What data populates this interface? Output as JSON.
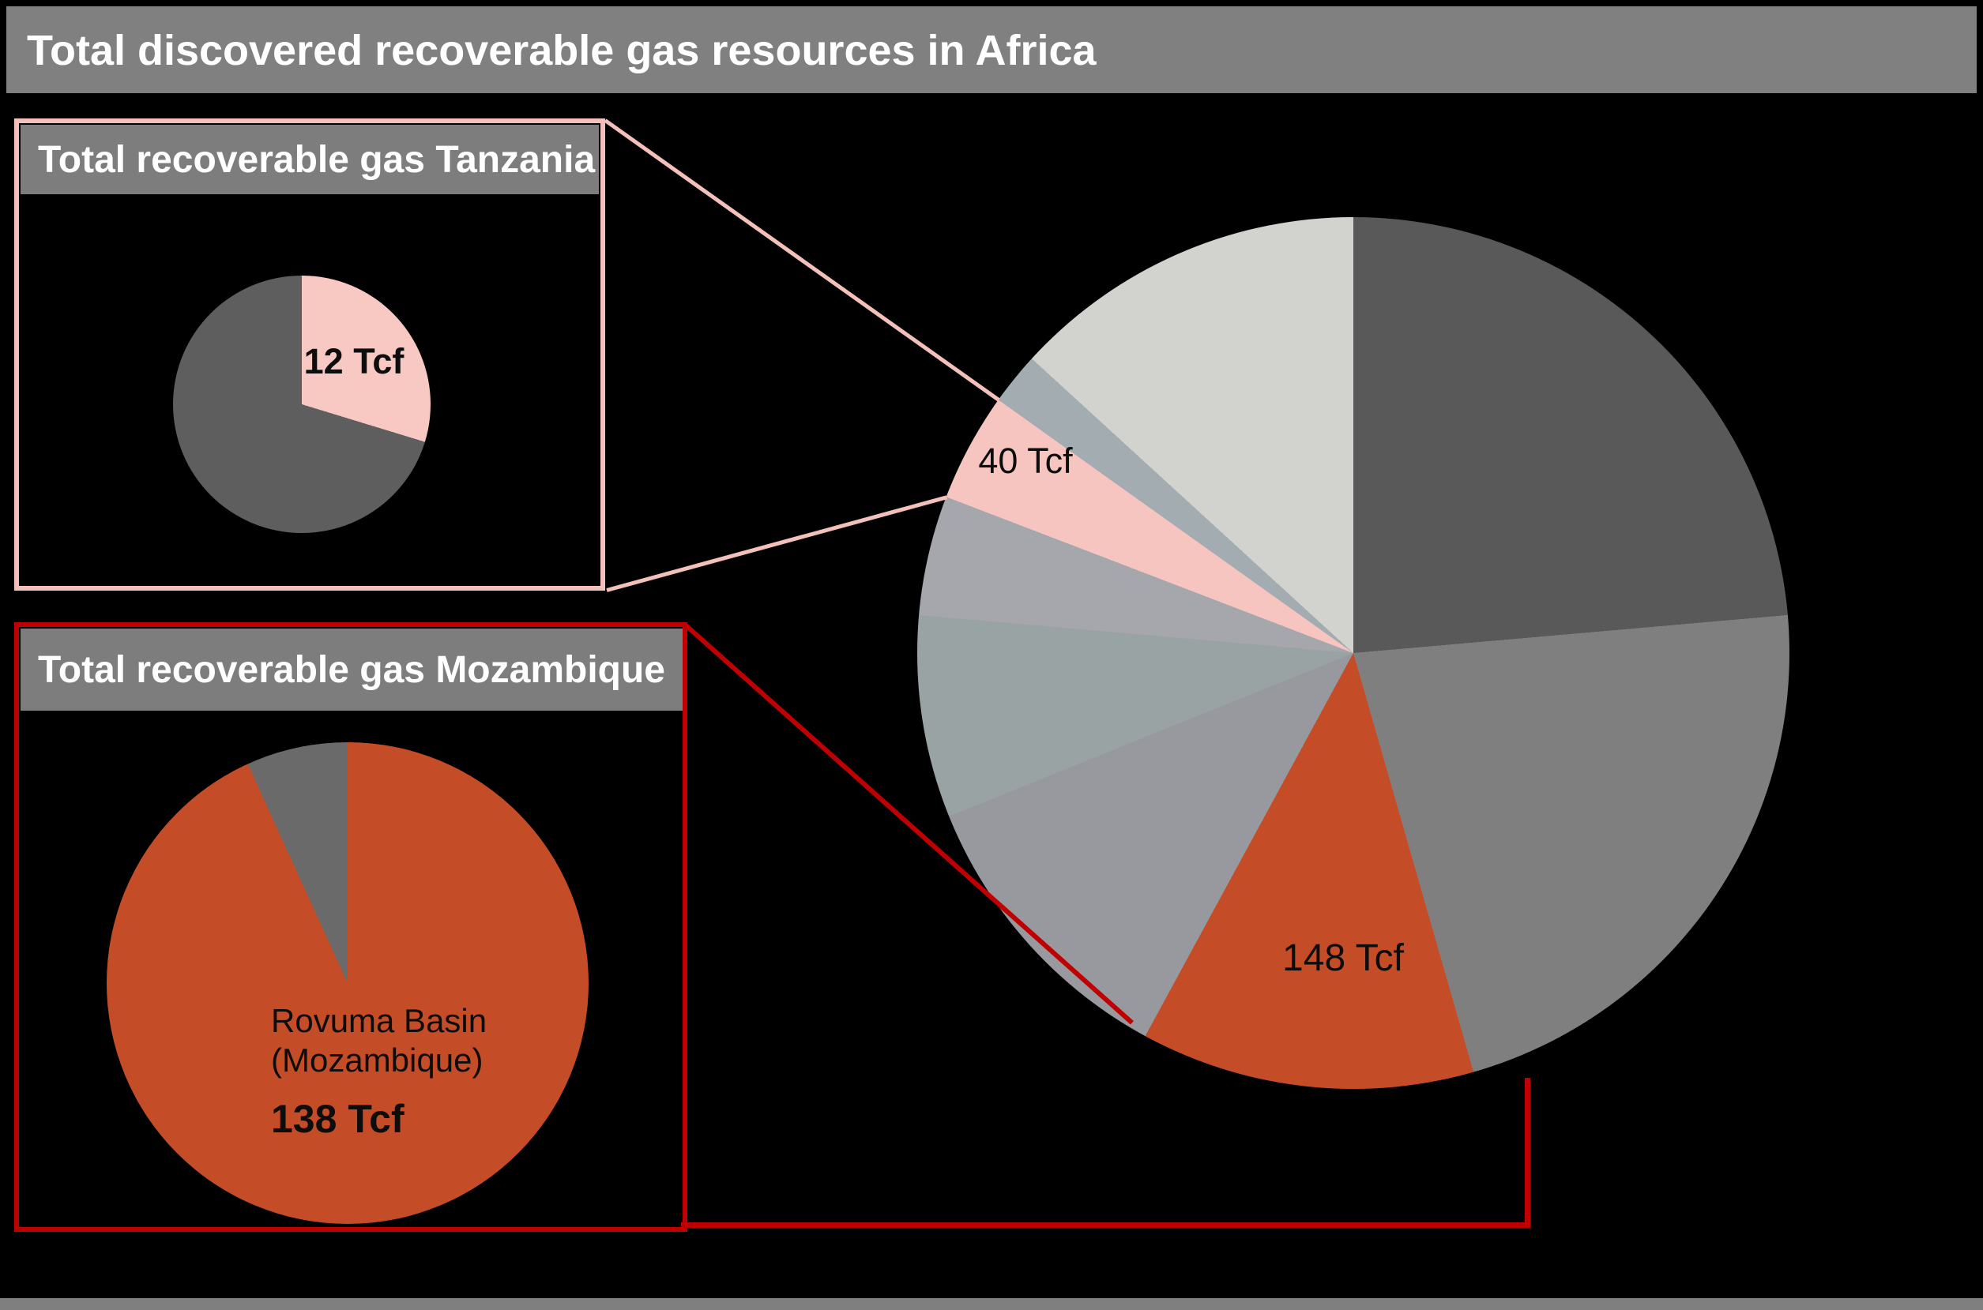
{
  "title": "Total discovered recoverable gas resources in Africa",
  "insets": {
    "tanzania": {
      "header": "Total recoverable gas Tanzania",
      "slice_label": "12 Tcf"
    },
    "mozambique": {
      "header": "Total recoverable gas Mozambique",
      "slice_label_line1": "Rovuma Basin",
      "slice_label_line2": "(Mozambique)",
      "slice_value": "138 Tcf"
    }
  },
  "main_pie_labels": {
    "pink_slice": "40 Tcf",
    "orange_slice": "148 Tcf"
  },
  "colors": {
    "background": "#000000",
    "title_bar": "#808080",
    "box_header": "#7D7D7D",
    "tanzania_accent_pink": "#F3C0BA",
    "mozambique_accent_red": "#C00000",
    "orange": "#C44D28"
  },
  "chart_data": [
    {
      "id": "africa-main",
      "type": "pie",
      "title": "Total discovered recoverable gas resources in Africa",
      "units": "Tcf",
      "legend_position": "none",
      "slices": [
        {
          "label": "",
          "value": null,
          "color": "#595959",
          "start": 0,
          "end": 85
        },
        {
          "label": "",
          "value": null,
          "color": "#7F7F7F",
          "start": 85,
          "end": 164
        },
        {
          "label": "148 Tcf",
          "value": 148,
          "color": "#C44D28",
          "start": 164,
          "end": 208.5
        },
        {
          "label": "",
          "value": null,
          "color": "#97999E",
          "start": 208.5,
          "end": 248
        },
        {
          "label": "",
          "value": null,
          "color": "#9AA3A4",
          "start": 248,
          "end": 275
        },
        {
          "label": "",
          "value": null,
          "color": "#A5A7AC",
          "start": 275,
          "end": 291
        },
        {
          "label": "40 Tcf",
          "value": 40,
          "color": "#F6C5C0",
          "start": 291,
          "end": 305.5
        },
        {
          "label": "",
          "value": null,
          "color": "#A3ADB1",
          "start": 305.5,
          "end": 312.5
        },
        {
          "label": "",
          "value": null,
          "color": "#D2D3CE",
          "start": 312.5,
          "end": 360
        }
      ]
    },
    {
      "id": "tanzania",
      "type": "pie",
      "title": "Total recoverable gas Tanzania",
      "units": "Tcf",
      "legend_position": "none",
      "slices": [
        {
          "label": "12 Tcf",
          "value": 12,
          "color": "#F8C8C3",
          "start": 0,
          "end": 107
        },
        {
          "label": "",
          "value": null,
          "color": "#5E5E5E",
          "start": 107,
          "end": 360
        }
      ]
    },
    {
      "id": "mozambique",
      "type": "pie",
      "title": "Total recoverable gas Mozambique",
      "units": "Tcf",
      "legend_position": "none",
      "slices": [
        {
          "label": "Rovuma Basin (Mozambique) 138 Tcf",
          "value": 138,
          "color": "#C44D28",
          "start": 0,
          "end": 335.5
        },
        {
          "label": "",
          "value": null,
          "color": "#6A6A6A",
          "start": 335.5,
          "end": 360
        }
      ]
    }
  ]
}
